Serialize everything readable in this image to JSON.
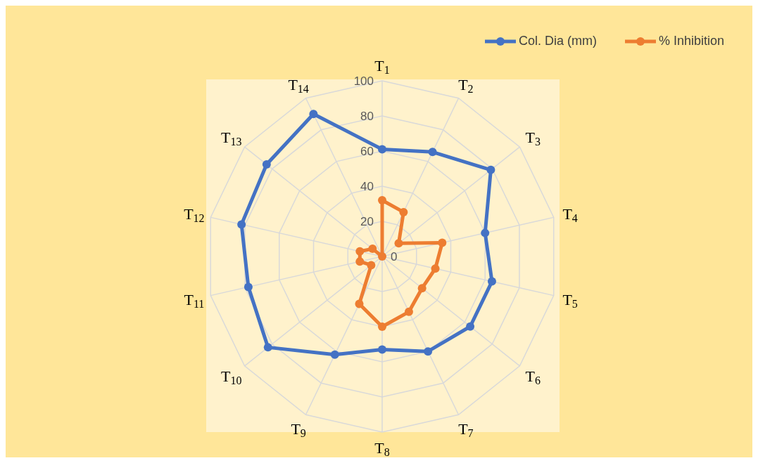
{
  "chart_data": {
    "type": "radar",
    "categories": [
      "T$_{1}$",
      "T$_{2}$",
      "T$_{3}$",
      "T$_{4}$",
      "T$_{5}$",
      "T$_{6}$",
      "T$_{7}$",
      "T$_{8}$",
      "T$_{9}$",
      "T$_{10}$",
      "T$_{11}$",
      "T$_{12}$",
      "T$_{13}$",
      "T$_{14}$"
    ],
    "series": [
      {
        "name": "Col. Dia (mm)",
        "color": "#4472c4",
        "values": [
          61,
          66,
          79,
          60,
          64,
          64,
          60,
          53,
          62,
          83,
          78,
          82,
          84,
          90
        ]
      },
      {
        "name": "% Inhibition",
        "color": "#ed7d31",
        "values": [
          32,
          28,
          12,
          35,
          31,
          29,
          35,
          40,
          30,
          8,
          13,
          13,
          7,
          0
        ]
      }
    ],
    "ylim": [
      0,
      100
    ],
    "yticks": [
      0,
      20,
      40,
      60,
      80,
      100
    ],
    "grid": true,
    "legend": "top right",
    "marker": "circle",
    "line_style": "solid"
  }
}
